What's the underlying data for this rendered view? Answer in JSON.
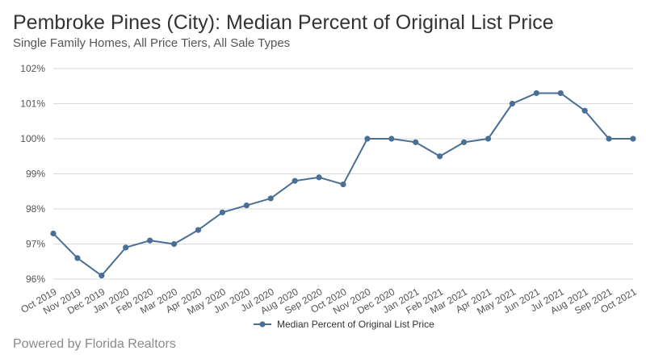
{
  "header": {
    "title": "Pembroke Pines (City): Median Percent of Original List Price",
    "subtitle": "Single Family Homes, All Price Tiers, All Sale Types"
  },
  "footer": {
    "text": "Powered by Florida Realtors"
  },
  "colors": {
    "series": "#4a6f96",
    "grid": "#d9d9d9",
    "axis_text": "#555555",
    "title": "#333333",
    "footer": "#8a8a8a"
  },
  "chart_data": {
    "type": "line",
    "title": "Pembroke Pines (City): Median Percent of Original List Price",
    "subtitle": "Single Family Homes, All Price Tiers, All Sale Types",
    "xlabel": "",
    "ylabel": "",
    "categories": [
      "Oct 2019",
      "Nov 2019",
      "Dec 2019",
      "Jan 2020",
      "Feb 2020",
      "Mar 2020",
      "Apr 2020",
      "May 2020",
      "Jun 2020",
      "Jul 2020",
      "Aug 2020",
      "Sep 2020",
      "Oct 2020",
      "Nov 2020",
      "Dec 2020",
      "Jan 2021",
      "Feb 2021",
      "Mar 2021",
      "Apr 2021",
      "May 2021",
      "Jun 2021",
      "Jul 2021",
      "Aug 2021",
      "Sep 2021",
      "Oct 2021"
    ],
    "series": [
      {
        "name": "Median Percent of Original List Price",
        "values": [
          97.3,
          96.6,
          96.1,
          96.9,
          97.1,
          97.0,
          97.4,
          97.9,
          98.1,
          98.3,
          98.8,
          98.9,
          98.7,
          100.0,
          100.0,
          99.9,
          99.5,
          99.9,
          100.0,
          101.0,
          101.3,
          101.3,
          100.8,
          100.0,
          100.0
        ]
      }
    ],
    "ylim": [
      96,
      102
    ],
    "y_ticks": [
      96,
      97,
      98,
      99,
      100,
      101,
      102
    ],
    "y_tick_labels": [
      "96%",
      "97%",
      "98%",
      "99%",
      "100%",
      "101%",
      "102%"
    ],
    "grid": true,
    "legend_position": "bottom"
  }
}
